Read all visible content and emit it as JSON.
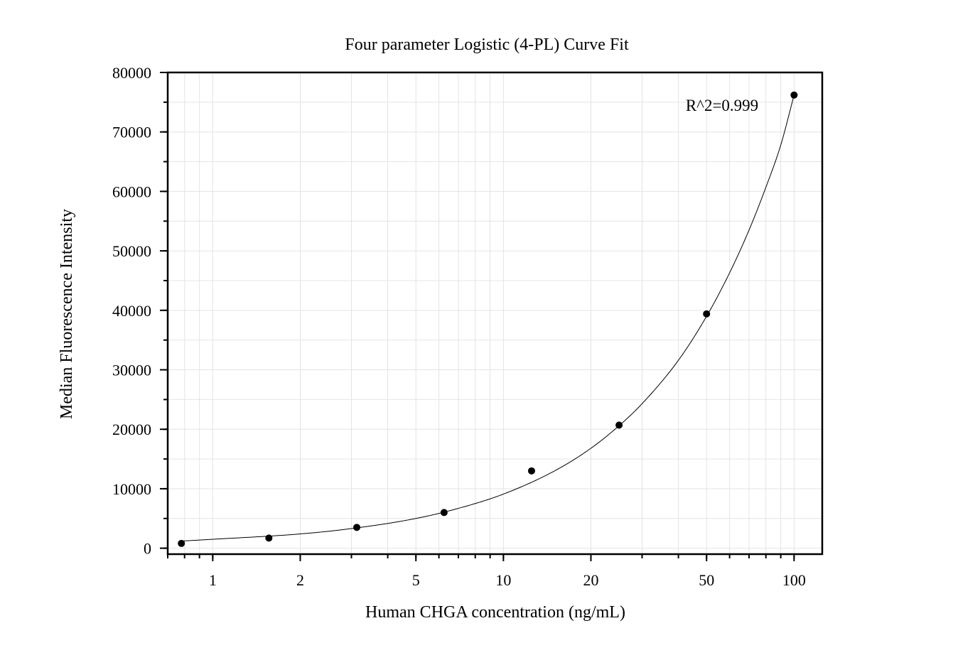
{
  "chart_data": {
    "type": "scatter",
    "title": "Four parameter Logistic (4-PL) Curve Fit",
    "xlabel": "Human CHGA concentration (ng/mL)",
    "ylabel": "Median Fluorescence Intensity",
    "x_scale": "log",
    "xlim": [
      0.7,
      125
    ],
    "ylim": [
      -1000,
      80000
    ],
    "grid": true,
    "x_ticks": [
      1,
      2,
      5,
      10,
      20,
      50,
      100
    ],
    "x_tick_labels": [
      "1",
      "2",
      "5",
      "10",
      "20",
      "50",
      "100"
    ],
    "y_ticks": [
      0,
      10000,
      20000,
      30000,
      40000,
      50000,
      60000,
      70000,
      80000
    ],
    "y_tick_labels": [
      "0",
      "10000",
      "20000",
      "30000",
      "40000",
      "50000",
      "60000",
      "70000",
      "80000"
    ],
    "series": [
      {
        "type": "scatter",
        "x": [
          0.78,
          1.56,
          3.13,
          6.25,
          12.5,
          25,
          50,
          100
        ],
        "y": [
          800,
          1700,
          3500,
          6000,
          13000,
          20700,
          39400,
          76200
        ]
      },
      {
        "type": "line",
        "fit": "4-PL",
        "x": [
          0.78,
          1,
          2,
          3,
          5,
          7,
          10,
          15,
          20,
          25,
          30,
          40,
          50,
          60,
          70,
          80,
          90,
          100
        ],
        "y": [
          1200,
          1500,
          2400,
          3300,
          5000,
          6700,
          9100,
          13000,
          16800,
          20600,
          24300,
          31600,
          39000,
          46300,
          53500,
          60700,
          67800,
          76200
        ]
      }
    ],
    "annotations": [
      {
        "text": "R^2=0.999"
      }
    ]
  }
}
